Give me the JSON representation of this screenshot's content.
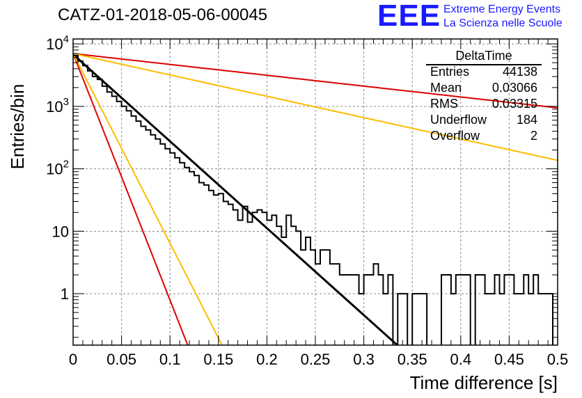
{
  "run_title": "CATZ-01-2018-05-06-00045",
  "logo": {
    "mark": "EEE",
    "line1": "Extreme Energy Events",
    "line2": "La Scienza nelle Scuole",
    "color": "#1a1aff"
  },
  "stats": {
    "title": "DeltaTime",
    "rows": [
      {
        "key": "Entries",
        "value": "44138"
      },
      {
        "key": "Mean",
        "value": "0.03066"
      },
      {
        "key": "RMS",
        "value": "0.03315"
      },
      {
        "key": "Underflow",
        "value": "184"
      },
      {
        "key": "Overflow",
        "value": "2"
      }
    ]
  },
  "chart_data": {
    "type": "histogram",
    "xlabel": "Time difference [s]",
    "ylabel": "Entries/bin",
    "xlim": [
      0,
      0.5
    ],
    "ylim_log": [
      0.15,
      12000
    ],
    "log_y": true,
    "grid": true,
    "bin_width": 0.005,
    "x_ticks": [
      "0",
      "0.05",
      "0.1",
      "0.15",
      "0.2",
      "0.25",
      "0.3",
      "0.35",
      "0.4",
      "0.45",
      "0.5"
    ],
    "y_ticks": [
      {
        "value": 1,
        "label": "1"
      },
      {
        "value": 10,
        "label": "10"
      },
      {
        "value": 100,
        "label": "10^2"
      },
      {
        "value": 1000,
        "label": "10^3"
      },
      {
        "value": 10000,
        "label": "10^4"
      }
    ],
    "histogram_counts": [
      6500,
      5300,
      4500,
      3700,
      3000,
      2700,
      2100,
      1700,
      1450,
      1200,
      1000,
      850,
      700,
      580,
      480,
      420,
      350,
      300,
      250,
      210,
      180,
      150,
      125,
      105,
      90,
      78,
      60,
      55,
      45,
      38,
      40,
      30,
      27,
      22,
      15,
      25,
      14,
      20,
      22,
      20,
      15,
      18,
      12,
      8,
      18,
      12,
      10,
      5,
      8,
      5,
      3,
      5,
      5,
      3,
      3,
      2,
      2,
      2,
      2,
      1,
      2,
      2,
      3,
      2,
      1,
      2,
      0,
      1,
      1,
      0,
      1,
      1,
      1,
      0,
      0,
      0,
      2,
      2,
      1,
      2,
      2,
      2,
      0,
      2,
      2,
      1,
      1,
      2,
      1,
      2,
      2,
      1,
      1,
      2,
      1,
      2,
      1,
      1,
      1,
      0
    ],
    "fit_lines": [
      {
        "color": "#000000",
        "width": 3,
        "y0": 6800,
        "tau": 0.0312
      },
      {
        "color": "#dd0000",
        "width": 2,
        "y0": 7000,
        "tau": 0.011
      },
      {
        "color": "#ffbb00",
        "width": 2,
        "y0": 7000,
        "tau": 0.0143
      },
      {
        "color": "#dd0000",
        "width": 2,
        "y0": 7000,
        "tau": 0.25
      },
      {
        "color": "#ffbb00",
        "width": 2,
        "y0": 7000,
        "tau": 0.127
      }
    ]
  }
}
